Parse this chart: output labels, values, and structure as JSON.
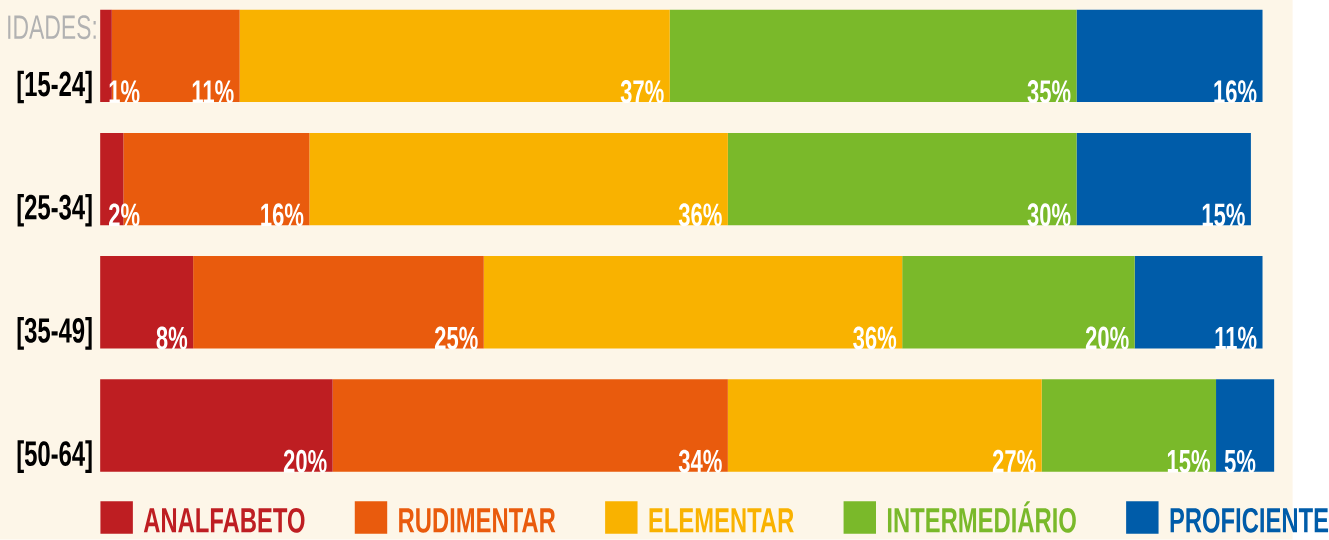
{
  "chart_data": {
    "type": "bar",
    "orientation": "horizontal",
    "stacked": true,
    "ylabel": "IDADES:",
    "legend": "bottom",
    "categories": [
      "[15-24]",
      "[25-34]",
      "[35-49]",
      "[50-64]"
    ],
    "series": [
      {
        "name": "ANALFABETO",
        "color": "#be1e22",
        "values": [
          1,
          2,
          8,
          20
        ],
        "value_labels": [
          "1%",
          "2%",
          "8%",
          "20%"
        ]
      },
      {
        "name": "RUDIMENTAR",
        "color": "#e95b0d",
        "values": [
          11,
          16,
          25,
          34
        ],
        "value_labels": [
          "11%",
          "16%",
          "25%",
          "34%"
        ]
      },
      {
        "name": "ELEMENTAR",
        "color": "#f9b200",
        "values": [
          37,
          36,
          36,
          27
        ],
        "value_labels": [
          "37%",
          "36%",
          "36%",
          "27%"
        ]
      },
      {
        "name": "INTERMEDIÁRIO",
        "color": "#7ab92a",
        "values": [
          35,
          30,
          20,
          15
        ],
        "value_labels": [
          "35%",
          "30%",
          "20%",
          "15%"
        ]
      },
      {
        "name": "PROFICIENTE",
        "color": "#005ca9",
        "values": [
          16,
          15,
          11,
          5
        ],
        "value_labels": [
          "16%",
          "15%",
          "11%",
          "5%"
        ]
      }
    ]
  }
}
